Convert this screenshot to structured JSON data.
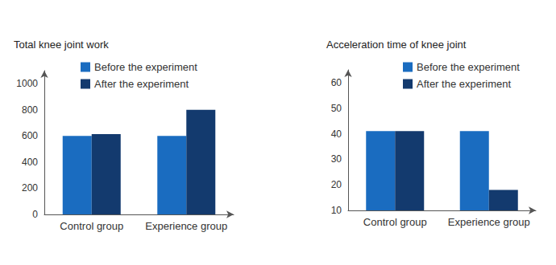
{
  "chart_data": [
    {
      "type": "bar",
      "title": "Total knee joint work",
      "categories": [
        "Control group",
        "Experience group"
      ],
      "series": [
        {
          "name": "Before the experiment",
          "color": "#1a6cc0",
          "values": [
            600,
            600
          ]
        },
        {
          "name": "After the experiment",
          "color": "#133a6e",
          "values": [
            615,
            800
          ]
        }
      ],
      "ylim": [
        0,
        1100
      ],
      "yticks": [
        0,
        200,
        400,
        600,
        800,
        1000
      ],
      "grid": false,
      "legend": "upper right"
    },
    {
      "type": "bar",
      "title": "Acceleration time of knee joint",
      "categories": [
        "Control group",
        "Experience group"
      ],
      "series": [
        {
          "name": "Before the experiment",
          "color": "#1a6cc0",
          "values": [
            41,
            41
          ]
        },
        {
          "name": "After the experiment",
          "color": "#133a6e",
          "values": [
            41,
            18
          ]
        }
      ],
      "ylim": [
        10,
        65
      ],
      "yticks": [
        10,
        20,
        30,
        40,
        50,
        60
      ],
      "grid": false,
      "legend": "upper right"
    }
  ]
}
